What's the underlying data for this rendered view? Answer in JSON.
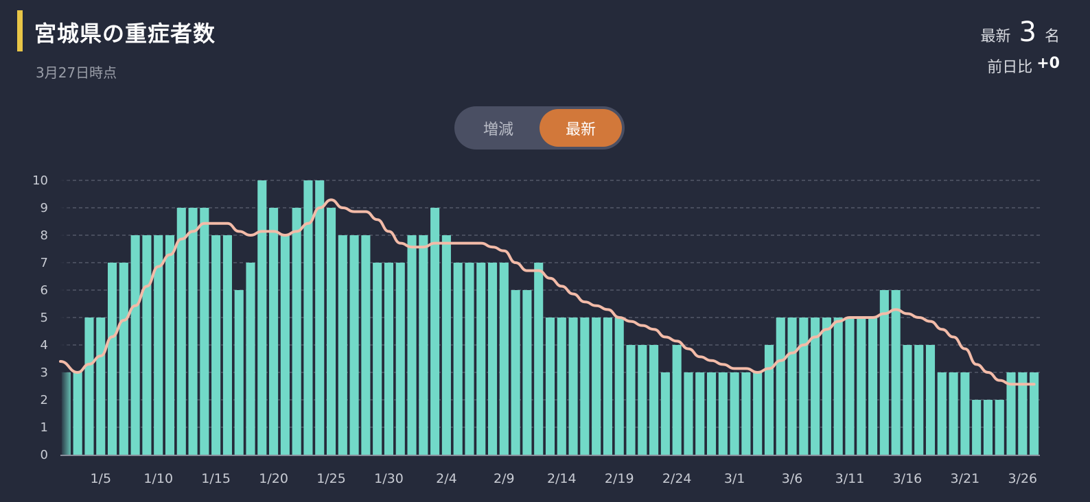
{
  "header": {
    "title": "宮城県の重症者数",
    "subtitle": "3月27日時点",
    "latest_label": "最新",
    "latest_value": "3",
    "latest_unit": "名",
    "diff_label": "前日比",
    "diff_value": "+0"
  },
  "toggle": {
    "options": [
      "増減",
      "最新"
    ],
    "selected": "最新"
  },
  "colors": {
    "background": "#252a3a",
    "bar": "#72d9c8",
    "line": "#f3bba8",
    "accent": "#e8c547",
    "toggle_active": "#d2783a"
  },
  "chart_data": {
    "type": "bar",
    "ylim": [
      0,
      10
    ],
    "yticks": [
      "0",
      "1",
      "2",
      "3",
      "4",
      "5",
      "6",
      "7",
      "8",
      "9",
      "10"
    ],
    "grid": true,
    "xtick_labels": [
      "1/5",
      "1/10",
      "1/15",
      "1/20",
      "1/25",
      "1/30",
      "2/4",
      "2/9",
      "2/14",
      "2/19",
      "2/24",
      "3/1",
      "3/6",
      "3/11",
      "3/16",
      "3/21",
      "3/26"
    ],
    "categories": [
      "1/2",
      "1/3",
      "1/4",
      "1/5",
      "1/6",
      "1/7",
      "1/8",
      "1/9",
      "1/10",
      "1/11",
      "1/12",
      "1/13",
      "1/14",
      "1/15",
      "1/16",
      "1/17",
      "1/18",
      "1/19",
      "1/20",
      "1/21",
      "1/22",
      "1/23",
      "1/24",
      "1/25",
      "1/26",
      "1/27",
      "1/28",
      "1/29",
      "1/30",
      "1/31",
      "2/1",
      "2/2",
      "2/3",
      "2/4",
      "2/5",
      "2/6",
      "2/7",
      "2/8",
      "2/9",
      "2/10",
      "2/11",
      "2/12",
      "2/13",
      "2/14",
      "2/15",
      "2/16",
      "2/17",
      "2/18",
      "2/19",
      "2/20",
      "2/21",
      "2/22",
      "2/23",
      "2/24",
      "2/25",
      "2/26",
      "2/27",
      "2/28",
      "3/1",
      "3/2",
      "3/3",
      "3/4",
      "3/5",
      "3/6",
      "3/7",
      "3/8",
      "3/9",
      "3/10",
      "3/11",
      "3/12",
      "3/13",
      "3/14",
      "3/15",
      "3/16",
      "3/17",
      "3/18",
      "3/19",
      "3/20",
      "3/21",
      "3/22",
      "3/23",
      "3/24",
      "3/25",
      "3/26",
      "3/27"
    ],
    "series": [
      {
        "type": "bar",
        "values": [
          3,
          3,
          5,
          5,
          7,
          7,
          8,
          8,
          8,
          8,
          9,
          9,
          9,
          8,
          8,
          6,
          7,
          10,
          9,
          8,
          9,
          10,
          10,
          9,
          8,
          8,
          8,
          7,
          7,
          7,
          8,
          8,
          9,
          8,
          7,
          7,
          7,
          7,
          7,
          6,
          6,
          7,
          5,
          5,
          5,
          5,
          5,
          5,
          5,
          4,
          4,
          4,
          3,
          4,
          3,
          3,
          3,
          3,
          3,
          3,
          3,
          4,
          5,
          5,
          5,
          5,
          5,
          5,
          5,
          5,
          5,
          6,
          6,
          4,
          4,
          4,
          3,
          3,
          3,
          2,
          2,
          2,
          3,
          3,
          3
        ]
      },
      {
        "type": "line",
        "values": [
          3.4,
          3.0,
          3.3,
          3.6,
          4.3,
          4.9,
          5.43,
          6.14,
          6.86,
          7.29,
          7.86,
          8.14,
          8.43,
          8.43,
          8.43,
          8.14,
          8.0,
          8.14,
          8.14,
          8.0,
          8.14,
          8.43,
          9.0,
          9.29,
          9.0,
          8.86,
          8.86,
          8.57,
          8.14,
          7.71,
          7.57,
          7.57,
          7.71,
          7.71,
          7.71,
          7.71,
          7.71,
          7.57,
          7.43,
          7.0,
          6.71,
          6.71,
          6.43,
          6.14,
          5.86,
          5.57,
          5.43,
          5.29,
          5.0,
          4.86,
          4.71,
          4.57,
          4.29,
          4.14,
          3.86,
          3.57,
          3.43,
          3.29,
          3.14,
          3.14,
          3.0,
          3.14,
          3.43,
          3.71,
          4.0,
          4.29,
          4.57,
          4.86,
          5.0,
          5.0,
          5.0,
          5.14,
          5.29,
          5.14,
          5.0,
          4.86,
          4.57,
          4.29,
          3.86,
          3.29,
          3.0,
          2.71,
          2.57,
          2.57,
          2.57
        ]
      }
    ]
  }
}
